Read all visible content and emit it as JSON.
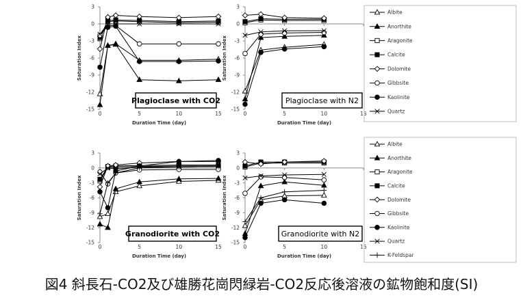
{
  "caption": "図4 斜長石-CO2及び雄勝花崗閃緑岩-CO2反応後溶液の鉱物飽和度(SI)",
  "legends": [
    {
      "entries": [
        {
          "name": "Albite",
          "marker": "triangle-open"
        },
        {
          "name": "Anorthite",
          "marker": "triangle-filled"
        },
        {
          "name": "Aragonite",
          "marker": "square-open"
        },
        {
          "name": "Calcite",
          "marker": "square-filled"
        },
        {
          "name": "Dolomite",
          "marker": "diamond-open"
        },
        {
          "name": "Gibbsite",
          "marker": "circle-open"
        },
        {
          "name": "Kaolinite",
          "marker": "circle-filled"
        },
        {
          "name": "Quartz",
          "marker": "x"
        }
      ]
    },
    {
      "entries": [
        {
          "name": "Albite",
          "marker": "triangle-open"
        },
        {
          "name": "Anorthite",
          "marker": "triangle-filled"
        },
        {
          "name": "Aragonite",
          "marker": "square-open"
        },
        {
          "name": "Calcite",
          "marker": "square-filled"
        },
        {
          "name": "Dolomite",
          "marker": "diamond-open"
        },
        {
          "name": "Gibbsite",
          "marker": "circle-open"
        },
        {
          "name": "Kaolinite",
          "marker": "circle-filled"
        },
        {
          "name": "Quartz",
          "marker": "x"
        },
        {
          "name": "K-Feldspar",
          "marker": "plus"
        }
      ]
    }
  ],
  "chart_data": [
    {
      "type": "line",
      "panel_label": "Plagioclase with CO2",
      "xlabel": "Duration Time (day)",
      "ylabel": "Saturation Index",
      "xlim": [
        0,
        15
      ],
      "ylim": [
        -15,
        3
      ],
      "xticks": [
        0,
        5,
        10,
        15
      ],
      "yticks": [
        3,
        0,
        -3,
        -6,
        -9,
        -12,
        -15
      ],
      "series": [
        {
          "name": "Albite",
          "marker": "triangle-open",
          "x": [
            0,
            1,
            2,
            5,
            10,
            15
          ],
          "y": [
            -12.3,
            -3.8,
            -3.5,
            -6.4,
            -6.4,
            -6.2
          ]
        },
        {
          "name": "Anorthite",
          "marker": "triangle-filled",
          "x": [
            0,
            1,
            2,
            5,
            10,
            15
          ],
          "y": [
            -14.2,
            -3.8,
            -3.6,
            -9.8,
            -10.0,
            -9.8
          ]
        },
        {
          "name": "Aragonite",
          "marker": "square-open",
          "x": [
            0,
            1,
            2,
            5,
            10,
            15
          ],
          "y": [
            -2.6,
            0.4,
            0.5,
            0.4,
            0.2,
            0.3
          ]
        },
        {
          "name": "Calcite",
          "marker": "square-filled",
          "x": [
            0,
            1,
            2,
            5,
            10,
            15
          ],
          "y": [
            -2.4,
            0.6,
            0.7,
            0.6,
            0.4,
            0.5
          ]
        },
        {
          "name": "Dolomite",
          "marker": "diamond-open",
          "x": [
            0,
            1,
            2,
            5,
            10,
            15
          ],
          "y": [
            -4.4,
            1.2,
            1.5,
            1.3,
            1.1,
            1.3
          ]
        },
        {
          "name": "Gibbsite",
          "marker": "circle-open",
          "x": [
            0,
            1,
            2,
            5,
            10,
            15
          ],
          "y": [
            -2.0,
            -0.3,
            -0.3,
            -3.5,
            -3.5,
            -3.5
          ]
        },
        {
          "name": "Kaolinite",
          "marker": "circle-filled",
          "x": [
            0,
            1,
            2,
            5,
            10,
            15
          ],
          "y": [
            -7.6,
            -0.6,
            -0.4,
            -6.6,
            -6.6,
            -6.5
          ]
        },
        {
          "name": "Quartz",
          "marker": "x",
          "x": [
            0,
            1,
            2,
            5,
            10,
            15
          ],
          "y": [
            -1.8,
            0.0,
            0.0,
            0.0,
            0.0,
            0.0
          ]
        }
      ]
    },
    {
      "type": "line",
      "panel_label": "Plagioclase with N2",
      "xlabel": "Duration Time (day)",
      "ylabel": "Saturation Index",
      "xlim": [
        0,
        15
      ],
      "ylim": [
        -15,
        3
      ],
      "xticks": [
        0,
        5,
        10,
        15
      ],
      "yticks": [
        3,
        0,
        -3,
        -6,
        -9,
        -12,
        -15
      ],
      "series": [
        {
          "name": "Albite",
          "marker": "triangle-open",
          "x": [
            0,
            2,
            5,
            10
          ],
          "y": [
            -11.8,
            -4.6,
            -4.1,
            -3.6
          ]
        },
        {
          "name": "Anorthite",
          "marker": "triangle-filled",
          "x": [
            0,
            2,
            5,
            10
          ],
          "y": [
            -13.2,
            -2.4,
            -2.2,
            -2.0
          ]
        },
        {
          "name": "Aragonite",
          "marker": "square-open",
          "x": [
            0,
            2,
            5,
            10
          ],
          "y": [
            0.2,
            0.7,
            0.6,
            0.6
          ]
        },
        {
          "name": "Calcite",
          "marker": "square-filled",
          "x": [
            0,
            2,
            5,
            10
          ],
          "y": [
            0.4,
            0.9,
            0.8,
            0.8
          ]
        },
        {
          "name": "Dolomite",
          "marker": "diamond-open",
          "x": [
            0,
            2,
            5,
            10
          ],
          "y": [
            1.5,
            1.7,
            1.1,
            1.0
          ]
        },
        {
          "name": "Gibbsite",
          "marker": "circle-open",
          "x": [
            0,
            2,
            5,
            10
          ],
          "y": [
            -5.2,
            -1.8,
            -1.6,
            -1.5
          ]
        },
        {
          "name": "Kaolinite",
          "marker": "circle-filled",
          "x": [
            0,
            2,
            5,
            10
          ],
          "y": [
            -14.1,
            -5.0,
            -4.4,
            -4.0
          ]
        },
        {
          "name": "Quartz",
          "marker": "x",
          "x": [
            0,
            2,
            5,
            10
          ],
          "y": [
            -2.0,
            -1.4,
            -1.2,
            -1.2
          ]
        }
      ]
    },
    {
      "type": "line",
      "panel_label": "Granodiorite with CO2",
      "xlabel": "Duration Time (day)",
      "ylabel": "Saturation Index",
      "xlim": [
        0,
        15
      ],
      "ylim": [
        -15,
        3
      ],
      "xticks": [
        0,
        5,
        10,
        15
      ],
      "yticks": [
        3,
        0,
        -3,
        -6,
        -9,
        -12,
        -15
      ],
      "series": [
        {
          "name": "Albite",
          "marker": "triangle-open",
          "x": [
            0,
            1,
            2,
            5,
            10,
            15
          ],
          "y": [
            -9.8,
            -9.2,
            -4.8,
            -3.6,
            -2.7,
            -2.5
          ]
        },
        {
          "name": "Anorthite",
          "marker": "triangle-filled",
          "x": [
            0,
            1,
            2,
            5,
            10,
            15
          ],
          "y": [
            -11.3,
            -12.0,
            -4.2,
            -2.8,
            -2.2,
            -2.1
          ]
        },
        {
          "name": "Aragonite",
          "marker": "square-open",
          "x": [
            0,
            1,
            2,
            5,
            10,
            15
          ],
          "y": [
            -2.6,
            0.1,
            0.2,
            0.3,
            0.4,
            0.4
          ]
        },
        {
          "name": "Calcite",
          "marker": "square-filled",
          "x": [
            0,
            1,
            2,
            5,
            10,
            15
          ],
          "y": [
            -2.3,
            0.3,
            0.4,
            0.5,
            0.6,
            0.6
          ]
        },
        {
          "name": "Dolomite",
          "marker": "diamond-open",
          "x": [
            0,
            1,
            2,
            5,
            10,
            15
          ],
          "y": [
            -3.8,
            0.4,
            0.6,
            1.0,
            1.3,
            1.3
          ]
        },
        {
          "name": "Gibbsite",
          "marker": "circle-open",
          "x": [
            0,
            1,
            2,
            5,
            10,
            15
          ],
          "y": [
            -0.8,
            -3.2,
            -1.0,
            -0.4,
            -0.3,
            -0.3
          ]
        },
        {
          "name": "Kaolinite",
          "marker": "circle-filled",
          "x": [
            0,
            1,
            2,
            5,
            10,
            15
          ],
          "y": [
            -4.8,
            -8.0,
            -0.6,
            0.4,
            1.3,
            1.5
          ]
        },
        {
          "name": "Quartz",
          "marker": "x",
          "x": [
            0,
            1,
            2,
            5,
            10,
            15
          ],
          "y": [
            -1.2,
            0.0,
            -0.2,
            0.2,
            0.2,
            0.3
          ]
        },
        {
          "name": "K-Feldspar",
          "marker": "plus",
          "x": [
            0,
            1,
            2,
            5,
            10,
            15
          ],
          "y": [
            -9.2,
            -3.0,
            -1.0,
            0.0,
            0.2,
            0.3
          ]
        }
      ]
    },
    {
      "type": "line",
      "panel_label": "Granodiorite with N2",
      "xlabel": "Duration Time (day)",
      "ylabel": "Saturation Index",
      "xlim": [
        0,
        15
      ],
      "ylim": [
        -15,
        3
      ],
      "xticks": [
        0,
        5,
        10,
        15
      ],
      "yticks": [
        3,
        0,
        -3,
        -6,
        -9,
        -12,
        -15
      ],
      "series": [
        {
          "name": "Albite",
          "marker": "triangle-open",
          "x": [
            0,
            2,
            5,
            10
          ],
          "y": [
            -11.6,
            -6.4,
            -5.6,
            -5.5
          ]
        },
        {
          "name": "Anorthite",
          "marker": "triangle-filled",
          "x": [
            0,
            2,
            5,
            10
          ],
          "y": [
            -13.2,
            -3.6,
            -2.8,
            -3.5
          ]
        },
        {
          "name": "Aragonite",
          "marker": "square-open",
          "x": [
            0,
            2,
            5,
            10
          ],
          "y": [
            0.2,
            1.0,
            1.0,
            1.0
          ]
        },
        {
          "name": "Calcite",
          "marker": "square-filled",
          "x": [
            0,
            2,
            5,
            10
          ],
          "y": [
            0.4,
            1.2,
            1.2,
            1.2
          ]
        },
        {
          "name": "Dolomite",
          "marker": "diamond-open",
          "x": [
            0,
            2,
            5,
            10
          ],
          "y": [
            1.2,
            0.8,
            1.2,
            1.4
          ]
        },
        {
          "name": "Gibbsite",
          "marker": "circle-open",
          "x": [
            0,
            2,
            5,
            10
          ],
          "y": [
            -5.1,
            -1.8,
            -1.9,
            -2.4
          ]
        },
        {
          "name": "Kaolinite",
          "marker": "circle-filled",
          "x": [
            0,
            2,
            5,
            10
          ],
          "y": [
            -14.0,
            -7.1,
            -6.4,
            -7.1
          ]
        },
        {
          "name": "Quartz",
          "marker": "x",
          "x": [
            0,
            2,
            5,
            10
          ],
          "y": [
            -2.0,
            -1.6,
            -1.4,
            -1.3
          ]
        },
        {
          "name": "K-Feldspar",
          "marker": "plus",
          "x": [
            0,
            2,
            5,
            10
          ],
          "y": [
            -10.8,
            -6.0,
            -4.8,
            -4.5
          ]
        }
      ]
    }
  ]
}
